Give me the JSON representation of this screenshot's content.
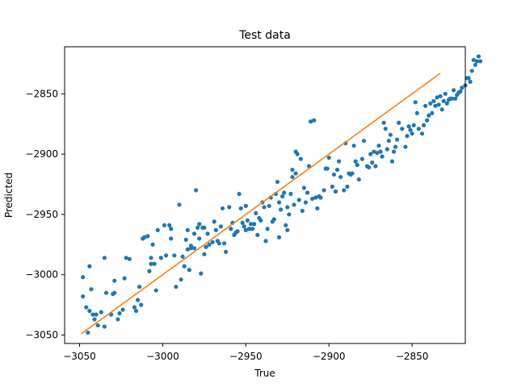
{
  "chart_data": {
    "type": "scatter",
    "title": "Test data",
    "xlabel": "True",
    "ylabel": "Predicted",
    "xlim": [
      -3059,
      -2818
    ],
    "ylim": [
      -3057,
      -2811
    ],
    "xticks": [
      -3050,
      -3000,
      -2950,
      -2900,
      -2850
    ],
    "yticks": [
      -3050,
      -3000,
      -2950,
      -2900,
      -2850
    ],
    "xtick_labels": [
      "−3050",
      "−3000",
      "−2950",
      "−2900",
      "−2850"
    ],
    "ytick_labels": [
      "−3050",
      "−3000",
      "−2950",
      "−2900",
      "−2850"
    ],
    "grid": false,
    "legend": "none",
    "colors": {
      "points": "#1f77b4",
      "fit_line": "#ff7f0e"
    },
    "series": [
      {
        "kind": "scatter",
        "points": [
          [
            -3048,
            -3002
          ],
          [
            -3048,
            -3018
          ],
          [
            -3046,
            -3027
          ],
          [
            -3045,
            -3048
          ],
          [
            -3044,
            -2993
          ],
          [
            -3044,
            -3030
          ],
          [
            -3043,
            -3012
          ],
          [
            -3042,
            -3033
          ],
          [
            -3041,
            -3037
          ],
          [
            -3040,
            -3033
          ],
          [
            -3039,
            -3042
          ],
          [
            -3037,
            -3031
          ],
          [
            -3035,
            -3043
          ],
          [
            -3035,
            -2986
          ],
          [
            -3034,
            -3015
          ],
          [
            -3031,
            -3033
          ],
          [
            -3030,
            -3016
          ],
          [
            -3029,
            -3005
          ],
          [
            -3029,
            -3015
          ],
          [
            -3027,
            -3037
          ],
          [
            -3026,
            -3032
          ],
          [
            -3024,
            -3029
          ],
          [
            -3023,
            -3003
          ],
          [
            -3022,
            -2986
          ],
          [
            -3020,
            -2987
          ],
          [
            -3017,
            -3027
          ],
          [
            -3016,
            -3030
          ],
          [
            -3015,
            -3021
          ],
          [
            -3014,
            -3010
          ],
          [
            -3013,
            -3025
          ],
          [
            -3012,
            -2970
          ],
          [
            -3011,
            -2969
          ],
          [
            -3009,
            -2968
          ],
          [
            -3008,
            -2997
          ],
          [
            -3007,
            -2986
          ],
          [
            -3007,
            -2991
          ],
          [
            -3006,
            -2975
          ],
          [
            -3005,
            -2991
          ],
          [
            -3004,
            -3013
          ],
          [
            -3003,
            -2963
          ],
          [
            -3001,
            -2986
          ],
          [
            -2999,
            -2959
          ],
          [
            -2998,
            -2984
          ],
          [
            -2996,
            -2959
          ],
          [
            -2995,
            -2970
          ],
          [
            -2995,
            -2962
          ],
          [
            -2993,
            -2984
          ],
          [
            -2992,
            -3010
          ],
          [
            -2990,
            -2942
          ],
          [
            -2989,
            -3004
          ],
          [
            -2988,
            -2985
          ],
          [
            -2987,
            -2993
          ],
          [
            -2986,
            -2971
          ],
          [
            -2985,
            -2979
          ],
          [
            -2985,
            -2963
          ],
          [
            -2984,
            -2996
          ],
          [
            -2983,
            -2978
          ],
          [
            -2983,
            -2976
          ],
          [
            -2981,
            -2966
          ],
          [
            -2981,
            -2978
          ],
          [
            -2980,
            -2930
          ],
          [
            -2979,
            -2961
          ],
          [
            -2978,
            -2958
          ],
          [
            -2978,
            -2970
          ],
          [
            -2977,
            -2999
          ],
          [
            -2976,
            -2961
          ],
          [
            -2975,
            -2961
          ],
          [
            -2975,
            -2983
          ],
          [
            -2974,
            -2977
          ],
          [
            -2973,
            -2966
          ],
          [
            -2972,
            -2975
          ],
          [
            -2970,
            -2973
          ],
          [
            -2969,
            -2956
          ],
          [
            -2968,
            -2963
          ],
          [
            -2967,
            -2972
          ],
          [
            -2966,
            -2974
          ],
          [
            -2965,
            -2960
          ],
          [
            -2964,
            -2945
          ],
          [
            -2963,
            -2974
          ],
          [
            -2962,
            -2981
          ],
          [
            -2960,
            -2944
          ],
          [
            -2959,
            -2962
          ],
          [
            -2958,
            -2957
          ],
          [
            -2957,
            -2967
          ],
          [
            -2956,
            -2965
          ],
          [
            -2955,
            -2964
          ],
          [
            -2954,
            -2933
          ],
          [
            -2953,
            -2945
          ],
          [
            -2952,
            -2957
          ],
          [
            -2951,
            -2960
          ],
          [
            -2950,
            -2963
          ],
          [
            -2950,
            -2943
          ],
          [
            -2949,
            -2955
          ],
          [
            -2948,
            -2962
          ],
          [
            -2947,
            -2958
          ],
          [
            -2946,
            -2962
          ],
          [
            -2945,
            -2958
          ],
          [
            -2944,
            -2949
          ],
          [
            -2943,
            -2967
          ],
          [
            -2942,
            -2953
          ],
          [
            -2941,
            -2955
          ],
          [
            -2940,
            -2940
          ],
          [
            -2939,
            -2944
          ],
          [
            -2938,
            -2972
          ],
          [
            -2937,
            -2962
          ],
          [
            -2936,
            -2943
          ],
          [
            -2935,
            -2936
          ],
          [
            -2934,
            -2956
          ],
          [
            -2933,
            -2954
          ],
          [
            -2932,
            -2933
          ],
          [
            -2931,
            -2923
          ],
          [
            -2930,
            -2969
          ],
          [
            -2930,
            -2940
          ],
          [
            -2929,
            -2946
          ],
          [
            -2928,
            -2935
          ],
          [
            -2927,
            -2932
          ],
          [
            -2926,
            -2959
          ],
          [
            -2925,
            -2963
          ],
          [
            -2925,
            -2944
          ],
          [
            -2924,
            -2950
          ],
          [
            -2923,
            -2933
          ],
          [
            -2922,
            -2913
          ],
          [
            -2922,
            -2919
          ],
          [
            -2921,
            -2942
          ],
          [
            -2920,
            -2898
          ],
          [
            -2920,
            -2916
          ],
          [
            -2919,
            -2900
          ],
          [
            -2918,
            -2938
          ],
          [
            -2917,
            -2904
          ],
          [
            -2916,
            -2947
          ],
          [
            -2915,
            -2928
          ],
          [
            -2914,
            -2940
          ],
          [
            -2913,
            -2932
          ],
          [
            -2912,
            -2910
          ],
          [
            -2911,
            -2873
          ],
          [
            -2910,
            -2937
          ],
          [
            -2909,
            -2872
          ],
          [
            -2908,
            -2936
          ],
          [
            -2907,
            -2945
          ],
          [
            -2906,
            -2935
          ],
          [
            -2905,
            -2936
          ],
          [
            -2903,
            -2930
          ],
          [
            -2902,
            -2912
          ],
          [
            -2901,
            -2912
          ],
          [
            -2900,
            -2903
          ],
          [
            -2898,
            -2927
          ],
          [
            -2897,
            -2917
          ],
          [
            -2896,
            -2931
          ],
          [
            -2895,
            -2913
          ],
          [
            -2894,
            -2906
          ],
          [
            -2893,
            -2919
          ],
          [
            -2891,
            -2930
          ],
          [
            -2890,
            -2891
          ],
          [
            -2889,
            -2927
          ],
          [
            -2888,
            -2916
          ],
          [
            -2887,
            -2917
          ],
          [
            -2886,
            -2916
          ],
          [
            -2885,
            -2893
          ],
          [
            -2884,
            -2906
          ],
          [
            -2883,
            -2909
          ],
          [
            -2882,
            -2921
          ],
          [
            -2880,
            -2904
          ],
          [
            -2879,
            -2889
          ],
          [
            -2877,
            -2910
          ],
          [
            -2876,
            -2911
          ],
          [
            -2875,
            -2900
          ],
          [
            -2874,
            -2907
          ],
          [
            -2873,
            -2898
          ],
          [
            -2872,
            -2910
          ],
          [
            -2871,
            -2899
          ],
          [
            -2870,
            -2893
          ],
          [
            -2869,
            -2898
          ],
          [
            -2868,
            -2902
          ],
          [
            -2867,
            -2874
          ],
          [
            -2866,
            -2879
          ],
          [
            -2865,
            -2896
          ],
          [
            -2864,
            -2889
          ],
          [
            -2863,
            -2884
          ],
          [
            -2862,
            -2906
          ],
          [
            -2861,
            -2898
          ],
          [
            -2860,
            -2894
          ],
          [
            -2859,
            -2888
          ],
          [
            -2858,
            -2874
          ],
          [
            -2856,
            -2879
          ],
          [
            -2854,
            -2894
          ],
          [
            -2853,
            -2885
          ],
          [
            -2852,
            -2877
          ],
          [
            -2851,
            -2880
          ],
          [
            -2850,
            -2883
          ],
          [
            -2849,
            -2876
          ],
          [
            -2848,
            -2857
          ],
          [
            -2847,
            -2866
          ],
          [
            -2846,
            -2879
          ],
          [
            -2844,
            -2883
          ],
          [
            -2843,
            -2876
          ],
          [
            -2842,
            -2860
          ],
          [
            -2841,
            -2872
          ],
          [
            -2840,
            -2868
          ],
          [
            -2839,
            -2858
          ],
          [
            -2838,
            -2866
          ],
          [
            -2837,
            -2856
          ],
          [
            -2836,
            -2860
          ],
          [
            -2835,
            -2853
          ],
          [
            -2834,
            -2859
          ],
          [
            -2833,
            -2852
          ],
          [
            -2832,
            -2863
          ],
          [
            -2831,
            -2856
          ],
          [
            -2830,
            -2850
          ],
          [
            -2829,
            -2858
          ],
          [
            -2828,
            -2855
          ],
          [
            -2827,
            -2854
          ],
          [
            -2826,
            -2854
          ],
          [
            -2825,
            -2847
          ],
          [
            -2824,
            -2854
          ],
          [
            -2823,
            -2851
          ],
          [
            -2822,
            -2849
          ],
          [
            -2821,
            -2848
          ],
          [
            -2820,
            -2845
          ],
          [
            -2818,
            -2843
          ],
          [
            -2817,
            -2837
          ],
          [
            -2816,
            -2837
          ],
          [
            -2815,
            -2840
          ],
          [
            -2814,
            -2831
          ],
          [
            -2813,
            -2822
          ],
          [
            -2812,
            -2826
          ],
          [
            -2811,
            -2823
          ],
          [
            -2810,
            -2819
          ],
          [
            -2809,
            -2823
          ]
        ]
      },
      {
        "kind": "line",
        "points": [
          [
            -3049,
            -3049
          ],
          [
            -2833,
            -2833
          ]
        ]
      }
    ]
  }
}
